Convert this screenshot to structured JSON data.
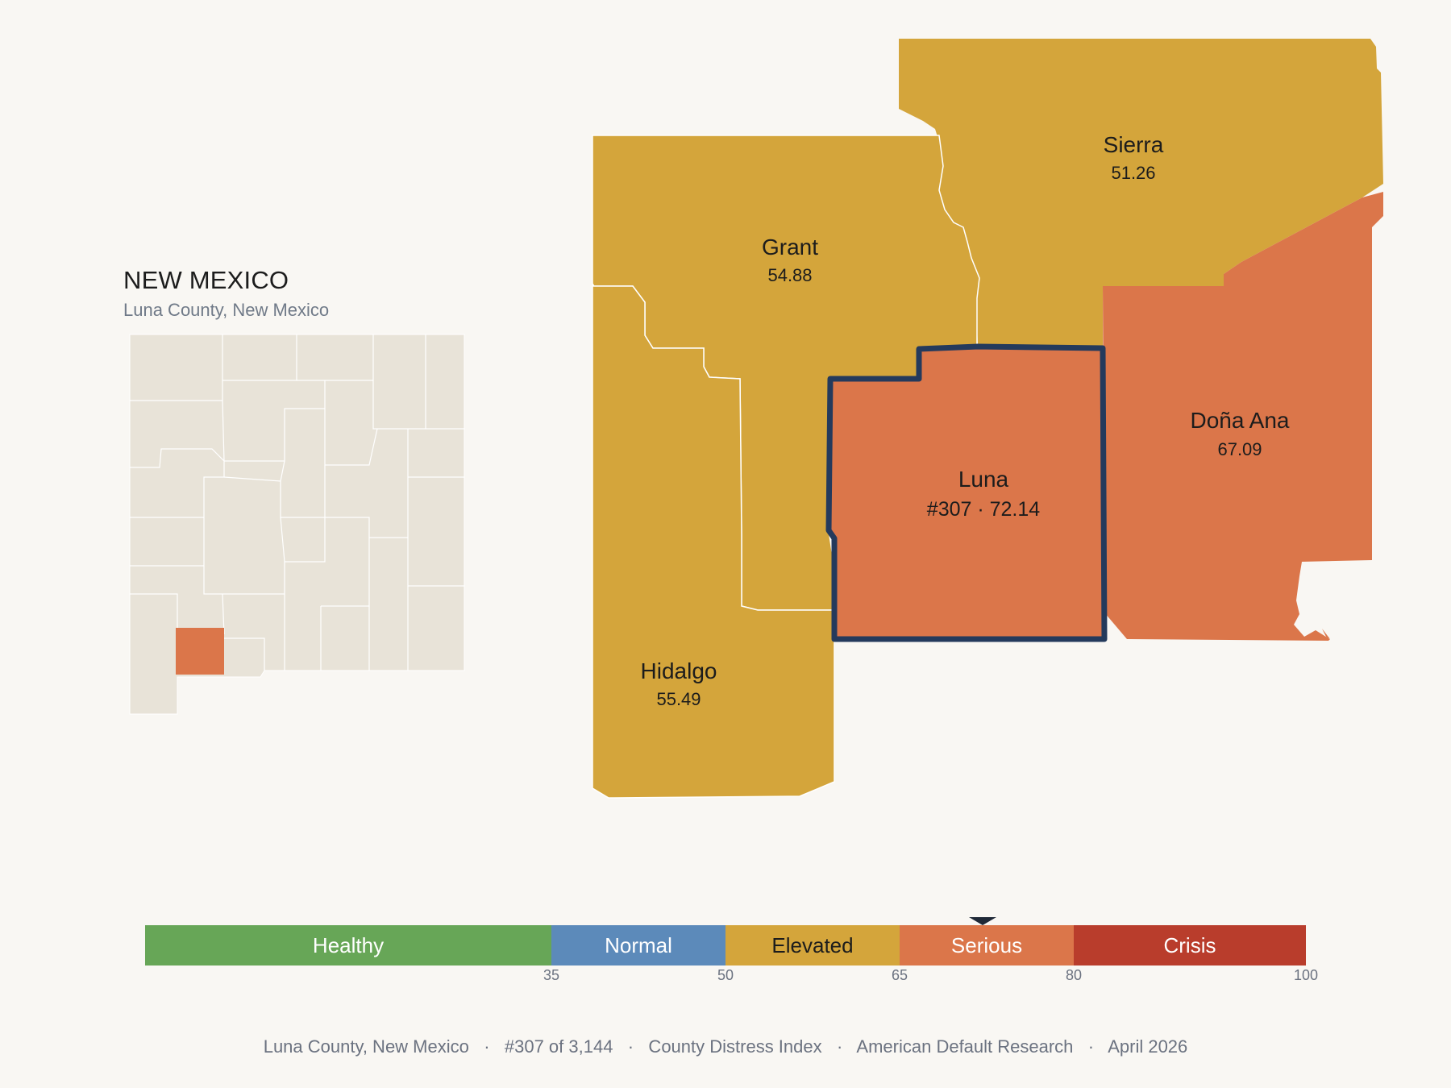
{
  "inset": {
    "title": "NEW MEXICO",
    "subtitle": "Luna County, New Mexico"
  },
  "colors": {
    "background": "#f9f7f3",
    "inset_fill": "#e8e3d8",
    "highlight": "#db764a",
    "elevated": "#d4a53b",
    "serious": "#db764a",
    "outline": "#243a5c"
  },
  "counties": [
    {
      "name": "Sierra",
      "value": "51.26",
      "level": "Elevated"
    },
    {
      "name": "Grant",
      "value": "54.88",
      "level": "Elevated"
    },
    {
      "name": "Hidalgo",
      "value": "55.49",
      "level": "Elevated"
    },
    {
      "name": "Doña Ana",
      "value": "67.09",
      "level": "Serious"
    },
    {
      "name": "Luna",
      "value": "#307 · 72.14",
      "level": "Serious",
      "selected": true
    }
  ],
  "scale": {
    "segments": [
      {
        "label": "Healthy",
        "min": 0,
        "max": 35,
        "color": "#67a657"
      },
      {
        "label": "Normal",
        "min": 35,
        "max": 50,
        "color": "#5c8aba"
      },
      {
        "label": "Elevated",
        "min": 50,
        "max": 65,
        "color": "#d4a53b"
      },
      {
        "label": "Serious",
        "min": 65,
        "max": 80,
        "color": "#db764a"
      },
      {
        "label": "Crisis",
        "min": 80,
        "max": 100,
        "color": "#b93d2c"
      }
    ],
    "ticks": [
      "35",
      "50",
      "65",
      "80",
      "100"
    ],
    "marker_value": 72.14
  },
  "footer": {
    "text": "Luna County, New Mexico   ·   #307 of 3,144   ·   County Distress Index   ·   American Default Research   ·   April 2026"
  }
}
